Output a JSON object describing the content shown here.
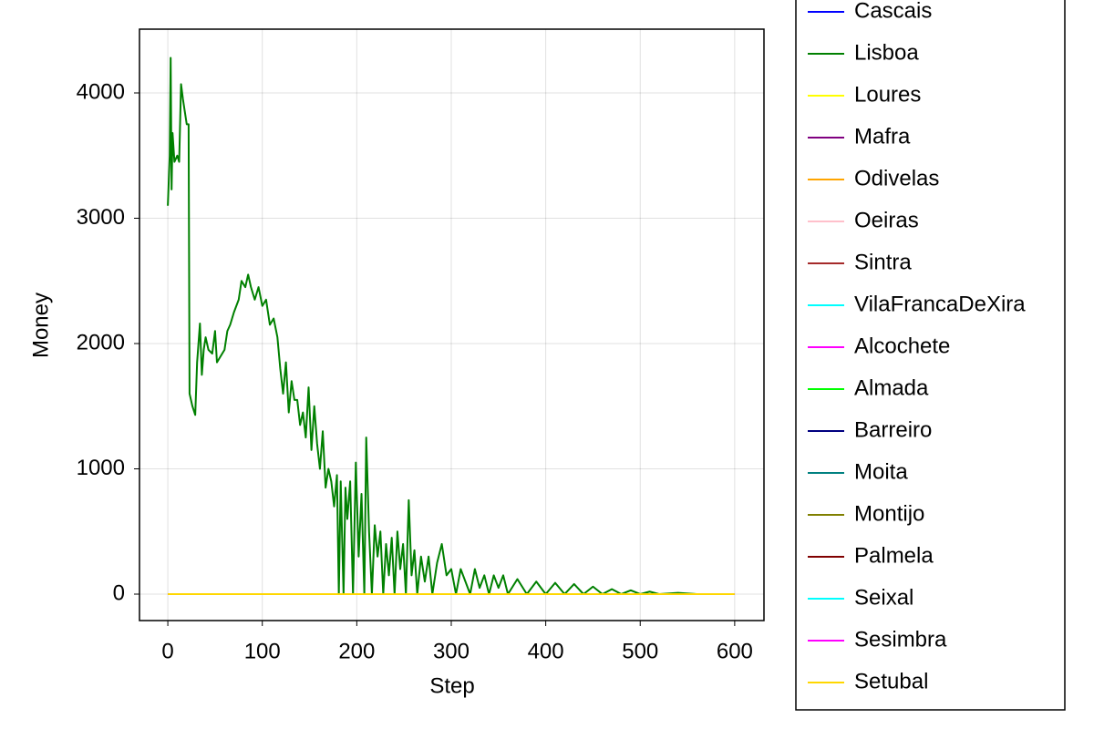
{
  "chart_data": {
    "type": "line",
    "xlabel": "Step",
    "ylabel": "Money",
    "xlim": [
      -30,
      631
    ],
    "ylim": [
      -211,
      4509
    ],
    "xticks": [
      0,
      100,
      200,
      300,
      400,
      500,
      600
    ],
    "yticks": [
      0,
      1000,
      2000,
      3000,
      4000
    ],
    "grid": true,
    "legend": "right",
    "series": [
      {
        "name": "Cascais",
        "color": "#0000ff",
        "x": [
          0,
          600
        ],
        "values": [
          0,
          0
        ]
      },
      {
        "name": "Lisboa",
        "color": "#008000",
        "x": [
          0,
          2,
          3,
          4,
          5,
          7,
          10,
          12,
          14,
          16,
          18,
          20,
          22,
          23,
          26,
          29,
          31,
          34,
          36,
          38,
          40,
          43,
          47,
          50,
          52,
          56,
          60,
          63,
          66,
          70,
          75,
          78,
          82,
          85,
          88,
          92,
          96,
          100,
          104,
          108,
          112,
          116,
          119,
          122,
          125,
          128,
          131,
          134,
          137,
          140,
          143,
          146,
          149,
          152,
          155,
          158,
          161,
          164,
          167,
          170,
          173,
          176,
          179,
          181,
          183,
          186,
          188,
          190,
          193,
          196,
          199,
          202,
          205,
          208,
          210,
          213,
          216,
          219,
          222,
          225,
          228,
          231,
          234,
          237,
          240,
          243,
          246,
          249,
          252,
          255,
          258,
          261,
          264,
          268,
          272,
          276,
          280,
          285,
          290,
          295,
          300,
          305,
          310,
          315,
          320,
          325,
          330,
          335,
          340,
          345,
          350,
          355,
          360,
          370,
          380,
          390,
          400,
          410,
          420,
          430,
          440,
          450,
          460,
          470,
          480,
          490,
          500,
          510,
          520,
          540,
          560,
          600
        ],
        "values": [
          3100,
          3500,
          4280,
          3230,
          3680,
          3450,
          3500,
          3450,
          4070,
          3950,
          3850,
          3750,
          3750,
          1600,
          1500,
          1430,
          1850,
          2160,
          1750,
          1950,
          2050,
          1950,
          1920,
          2100,
          1850,
          1900,
          1950,
          2100,
          2150,
          2250,
          2350,
          2500,
          2450,
          2550,
          2450,
          2350,
          2450,
          2300,
          2350,
          2150,
          2200,
          2050,
          1800,
          1600,
          1850,
          1450,
          1700,
          1550,
          1550,
          1350,
          1450,
          1250,
          1650,
          1150,
          1500,
          1200,
          1000,
          1300,
          850,
          1000,
          900,
          700,
          950,
          0,
          900,
          0,
          850,
          600,
          900,
          0,
          1050,
          300,
          800,
          0,
          1250,
          500,
          0,
          550,
          300,
          500,
          0,
          400,
          150,
          450,
          0,
          500,
          200,
          400,
          0,
          750,
          150,
          350,
          0,
          300,
          100,
          300,
          0,
          250,
          400,
          150,
          200,
          0,
          200,
          100,
          0,
          200,
          50,
          150,
          0,
          150,
          50,
          150,
          0,
          120,
          0,
          100,
          0,
          90,
          0,
          80,
          0,
          60,
          0,
          40,
          0,
          30,
          0,
          20,
          0,
          10,
          0,
          0
        ]
      },
      {
        "name": "Loures",
        "color": "#ffff00",
        "x": [
          0,
          600
        ],
        "values": [
          0,
          0
        ]
      },
      {
        "name": "Mafra",
        "color": "#800080",
        "x": [
          0,
          600
        ],
        "values": [
          0,
          0
        ]
      },
      {
        "name": "Odivelas",
        "color": "#ffa500",
        "x": [
          0,
          600
        ],
        "values": [
          0,
          0
        ]
      },
      {
        "name": "Oeiras",
        "color": "#ffc0cb",
        "x": [
          0,
          600
        ],
        "values": [
          0,
          0
        ]
      },
      {
        "name": "Sintra",
        "color": "#a52a2a",
        "x": [
          0,
          600
        ],
        "values": [
          0,
          0
        ]
      },
      {
        "name": "VilaFrancaDeXira",
        "color": "#00ffff",
        "x": [
          0,
          600
        ],
        "values": [
          0,
          0
        ]
      },
      {
        "name": "Alcochete",
        "color": "#ff00ff",
        "x": [
          0,
          600
        ],
        "values": [
          0,
          0
        ]
      },
      {
        "name": "Almada",
        "color": "#00ff00",
        "x": [
          0,
          600
        ],
        "values": [
          0,
          0
        ]
      },
      {
        "name": "Barreiro",
        "color": "#000080",
        "x": [
          0,
          600
        ],
        "values": [
          0,
          0
        ]
      },
      {
        "name": "Moita",
        "color": "#008080",
        "x": [
          0,
          600
        ],
        "values": [
          0,
          0
        ]
      },
      {
        "name": "Montijo",
        "color": "#808000",
        "x": [
          0,
          600
        ],
        "values": [
          0,
          0
        ]
      },
      {
        "name": "Palmela",
        "color": "#800000",
        "x": [
          0,
          600
        ],
        "values": [
          0,
          0
        ]
      },
      {
        "name": "Seixal",
        "color": "#00ffff",
        "x": [
          0,
          600
        ],
        "values": [
          0,
          0
        ]
      },
      {
        "name": "Sesimbra",
        "color": "#ff00ff",
        "x": [
          0,
          600
        ],
        "values": [
          0,
          0
        ]
      },
      {
        "name": "Setubal",
        "color": "#ffd700",
        "x": [
          0,
          600
        ],
        "values": [
          0,
          0
        ]
      }
    ]
  }
}
